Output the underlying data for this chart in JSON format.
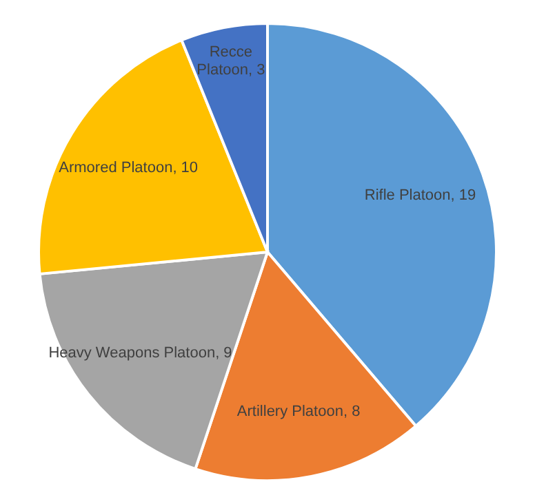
{
  "chart_data": {
    "type": "pie",
    "categories": [
      "Rifle Platoon",
      "Artillery Platoon",
      "Heavy Weapons Platoon",
      "Armored Platoon",
      "Recce Platoon"
    ],
    "values": [
      19,
      8,
      9,
      10,
      3
    ],
    "colors": [
      "#5b9bd5",
      "#ed7d31",
      "#a5a5a5",
      "#ffc000",
      "#4472c4"
    ],
    "value_labels": [
      ", 19",
      ", 8",
      ", 9",
      ", 10",
      ", 3"
    ]
  }
}
